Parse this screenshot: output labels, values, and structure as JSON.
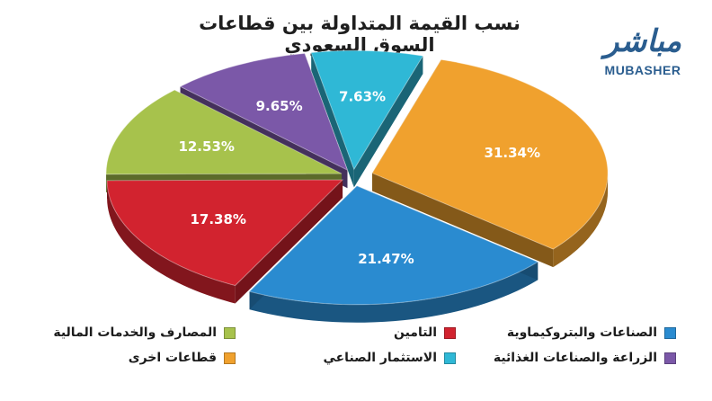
{
  "chart_data": {
    "type": "pie",
    "title": "نسب القيمة المتداولة بين قطاعات السوق السعودي",
    "slices": [
      {
        "label": "قطاعات اخرى",
        "value": 31.34,
        "value_label": "31.34%",
        "color": "#f0a12e"
      },
      {
        "label": "الصناعات والبتروكيماوية",
        "value": 21.47,
        "value_label": "21.47%",
        "color": "#2a8bd0"
      },
      {
        "label": "التامين",
        "value": 17.38,
        "value_label": "17.38%",
        "color": "#d2232f"
      },
      {
        "label": "المصارف والخدمات المالية",
        "value": 12.53,
        "value_label": "12.53%",
        "color": "#a7c24c"
      },
      {
        "label": "الزراعة والصناعات الغذائية",
        "value": 9.65,
        "value_label": "9.65%",
        "color": "#7b58a8"
      },
      {
        "label": "الاستثمار الصناعي",
        "value": 7.63,
        "value_label": "7.63%",
        "color": "#2fb8d6"
      }
    ],
    "legend_order": [
      1,
      2,
      3,
      4,
      5,
      0
    ],
    "legend_position": "bottom"
  },
  "logo": {
    "arabic": "مباشر",
    "english": "MUBASHER"
  }
}
